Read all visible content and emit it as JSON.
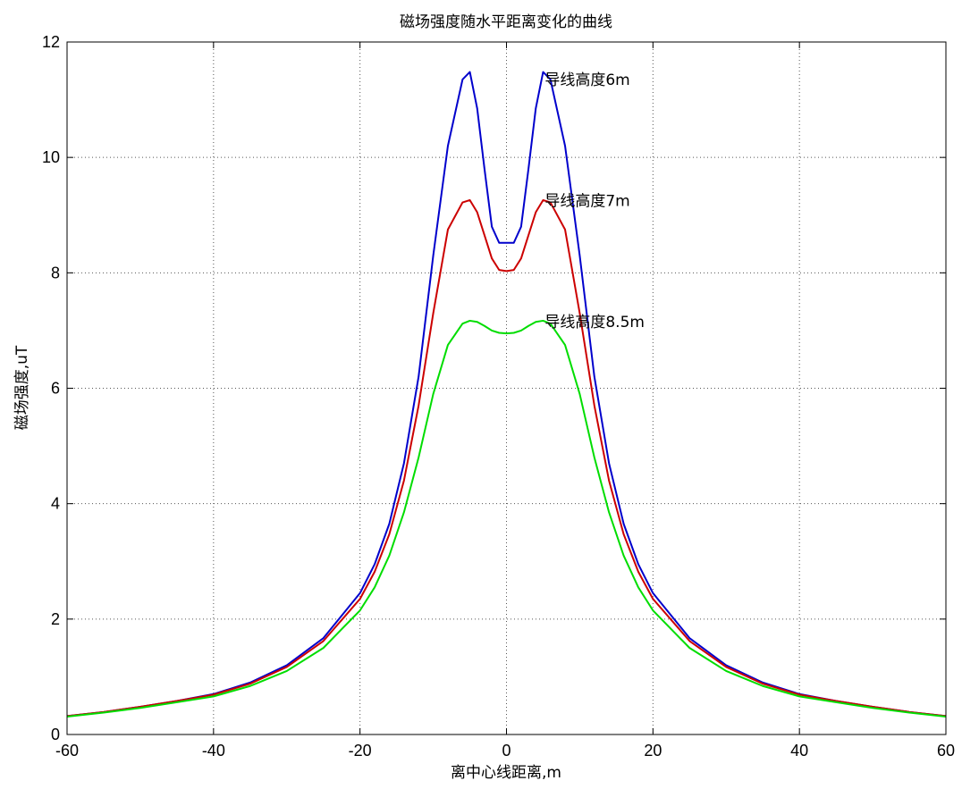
{
  "chart_data": {
    "type": "line",
    "title": "磁场强度随水平距离变化的曲线",
    "xlabel": "离中心线距离,m",
    "ylabel": "磁场强度,uT",
    "xlim": [
      -60,
      60
    ],
    "ylim": [
      0,
      12
    ],
    "xticks": [
      -60,
      -40,
      -20,
      0,
      20,
      40,
      60
    ],
    "yticks": [
      0,
      2,
      4,
      6,
      8,
      10,
      12
    ],
    "grid": true,
    "x": [
      -60,
      -55,
      -50,
      -45,
      -40,
      -35,
      -30,
      -25,
      -20,
      -18,
      -16,
      -14,
      -12,
      -10,
      -8,
      -6,
      -5,
      -4,
      -3,
      -2,
      -1,
      0,
      1,
      2,
      3,
      4,
      5,
      6,
      8,
      10,
      12,
      14,
      16,
      18,
      20,
      25,
      30,
      35,
      40,
      45,
      50,
      55,
      60
    ],
    "series": [
      {
        "name": "导线高度6m",
        "color": "#0000cc",
        "label_at": [
          4.5,
          11.35
        ],
        "values": [
          0.32,
          0.39,
          0.48,
          0.58,
          0.7,
          0.9,
          1.2,
          1.67,
          2.45,
          2.95,
          3.65,
          4.7,
          6.2,
          8.3,
          10.2,
          11.35,
          11.48,
          10.85,
          9.8,
          8.8,
          8.52,
          8.52,
          8.52,
          8.8,
          9.8,
          10.85,
          11.48,
          11.35,
          10.2,
          8.3,
          6.2,
          4.7,
          3.65,
          2.95,
          2.45,
          1.67,
          1.2,
          0.9,
          0.7,
          0.58,
          0.48,
          0.39,
          0.32
        ]
      },
      {
        "name": "导线高度7m",
        "color": "#cc0000",
        "label_at": [
          4.5,
          9.25
        ],
        "values": [
          0.32,
          0.39,
          0.48,
          0.58,
          0.69,
          0.88,
          1.17,
          1.62,
          2.35,
          2.82,
          3.47,
          4.4,
          5.7,
          7.3,
          8.75,
          9.22,
          9.26,
          9.05,
          8.65,
          8.25,
          8.05,
          8.03,
          8.05,
          8.25,
          8.65,
          9.05,
          9.26,
          9.22,
          8.75,
          7.3,
          5.7,
          4.4,
          3.47,
          2.82,
          2.35,
          1.62,
          1.17,
          0.88,
          0.69,
          0.58,
          0.48,
          0.39,
          0.32
        ]
      },
      {
        "name": "导线高度8.5m",
        "color": "#00dd00",
        "label_at": [
          4.5,
          7.15
        ],
        "values": [
          0.31,
          0.38,
          0.46,
          0.56,
          0.66,
          0.84,
          1.1,
          1.5,
          2.15,
          2.55,
          3.1,
          3.85,
          4.8,
          5.9,
          6.75,
          7.12,
          7.17,
          7.15,
          7.08,
          7.0,
          6.96,
          6.95,
          6.96,
          7.0,
          7.08,
          7.15,
          7.17,
          7.12,
          6.75,
          5.9,
          4.8,
          3.85,
          3.1,
          2.55,
          2.15,
          1.5,
          1.1,
          0.84,
          0.66,
          0.56,
          0.46,
          0.38,
          0.31
        ]
      }
    ]
  }
}
